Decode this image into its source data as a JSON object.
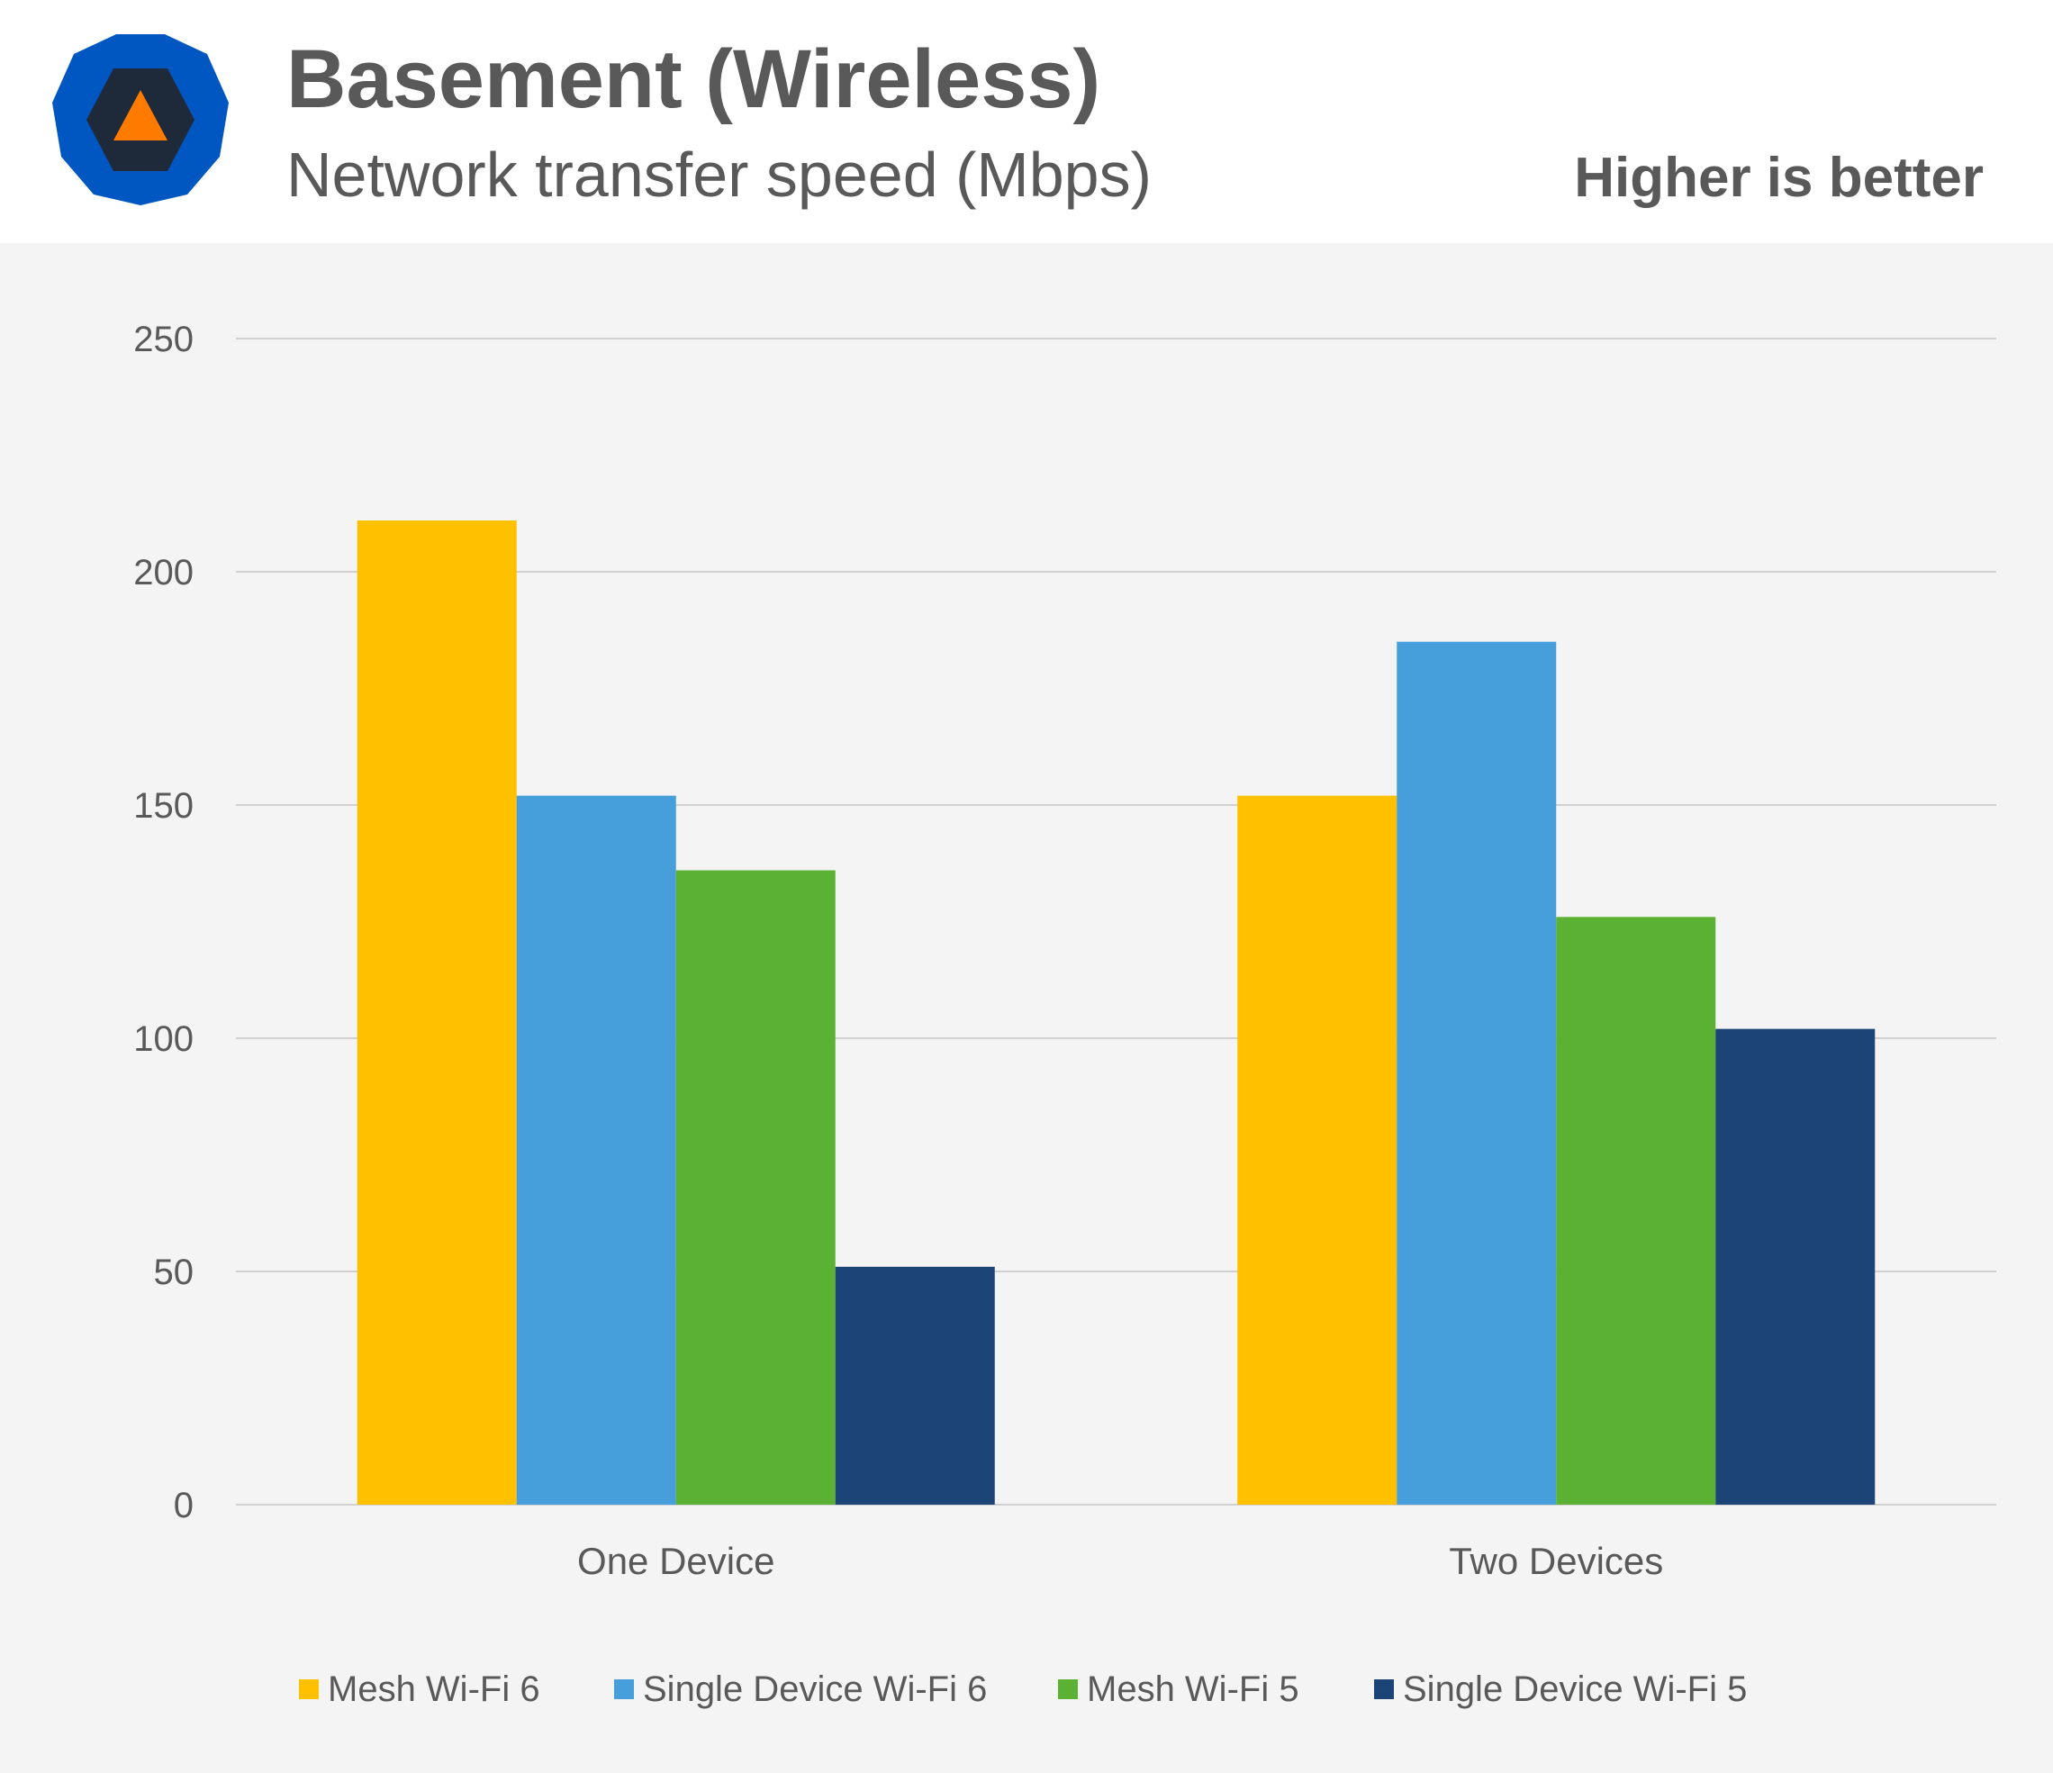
{
  "header": {
    "title": "Basement (Wireless)",
    "subtitle": "Network transfer speed (Mbps)",
    "note": "Higher is better"
  },
  "colors": {
    "header_bg": "#ffffff",
    "plot_bg": "#f4f4f4",
    "grid": "#d0d0d0",
    "text": "#595959",
    "logo_outer": "#0057c2",
    "logo_inner": "#1e2a3a",
    "logo_triangle": "#ff7b00"
  },
  "chart_data": {
    "type": "bar",
    "categories": [
      "One Device",
      "Two Devices"
    ],
    "series": [
      {
        "name": "Mesh Wi-Fi 6",
        "color": "#ffc000",
        "values": [
          211,
          152
        ]
      },
      {
        "name": "Single Device Wi-Fi 6",
        "color": "#469edb",
        "values": [
          152,
          185
        ]
      },
      {
        "name": "Mesh Wi-Fi 5",
        "color": "#5bb134",
        "values": [
          136,
          126
        ]
      },
      {
        "name": "Single Device Wi-Fi 5",
        "color": "#1d4477",
        "values": [
          51,
          102
        ]
      }
    ],
    "y_ticks": [
      "0",
      "50",
      "100",
      "150",
      "200",
      "250"
    ],
    "ylim": [
      0,
      250
    ],
    "grid": true,
    "legend_position": "bottom"
  }
}
